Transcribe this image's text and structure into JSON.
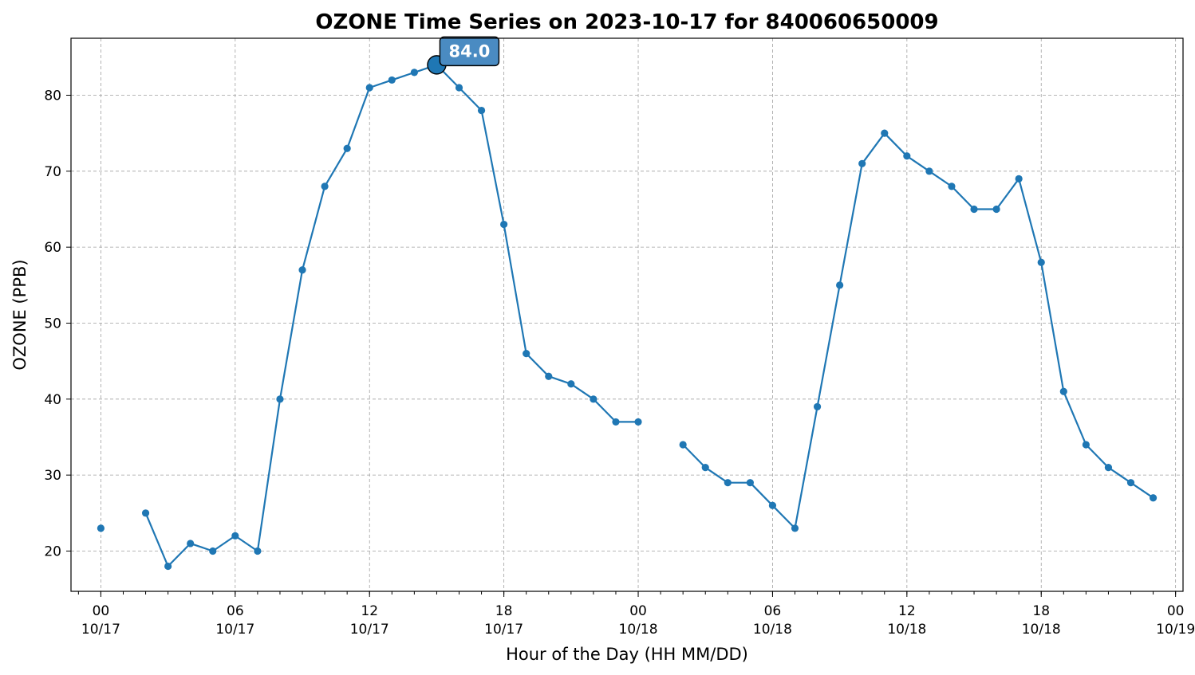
{
  "chart_data": {
    "type": "line",
    "title": "OZONE Time Series on 2023-10-17 for 840060650009",
    "xlabel": "Hour of the Day (HH MM/DD)",
    "ylabel": "OZONE (PPB)",
    "xlim": [
      "2023-10-16 22:40",
      "2023-10-19 00:20"
    ],
    "ylim": [
      14.7,
      87.5
    ],
    "y_ticks": [
      20,
      30,
      40,
      50,
      60,
      70,
      80
    ],
    "x_ticks": [
      {
        "time": "2023-10-17 00:00",
        "hour": "00",
        "date": "10/17"
      },
      {
        "time": "2023-10-17 06:00",
        "hour": "06",
        "date": "10/17"
      },
      {
        "time": "2023-10-17 12:00",
        "hour": "12",
        "date": "10/17"
      },
      {
        "time": "2023-10-17 18:00",
        "hour": "18",
        "date": "10/17"
      },
      {
        "time": "2023-10-18 00:00",
        "hour": "00",
        "date": "10/18"
      },
      {
        "time": "2023-10-18 06:00",
        "hour": "06",
        "date": "10/18"
      },
      {
        "time": "2023-10-18 12:00",
        "hour": "12",
        "date": "10/18"
      },
      {
        "time": "2023-10-18 18:00",
        "hour": "18",
        "date": "10/18"
      },
      {
        "time": "2023-10-19 00:00",
        "hour": "00",
        "date": "10/19"
      }
    ],
    "grid": true,
    "series": [
      {
        "color": "#1f77b4",
        "points": [
          {
            "time": "2023-10-17 00:00",
            "value": 23
          },
          {
            "time": "2023-10-17 01:00",
            "value": null
          },
          {
            "time": "2023-10-17 02:00",
            "value": 25
          },
          {
            "time": "2023-10-17 03:00",
            "value": 18
          },
          {
            "time": "2023-10-17 04:00",
            "value": 21
          },
          {
            "time": "2023-10-17 05:00",
            "value": 20
          },
          {
            "time": "2023-10-17 06:00",
            "value": 22
          },
          {
            "time": "2023-10-17 07:00",
            "value": 20
          },
          {
            "time": "2023-10-17 08:00",
            "value": 40
          },
          {
            "time": "2023-10-17 09:00",
            "value": 57
          },
          {
            "time": "2023-10-17 10:00",
            "value": 68
          },
          {
            "time": "2023-10-17 11:00",
            "value": 73
          },
          {
            "time": "2023-10-17 12:00",
            "value": 81
          },
          {
            "time": "2023-10-17 13:00",
            "value": 82
          },
          {
            "time": "2023-10-17 14:00",
            "value": 83
          },
          {
            "time": "2023-10-17 15:00",
            "value": 84
          },
          {
            "time": "2023-10-17 16:00",
            "value": 81
          },
          {
            "time": "2023-10-17 17:00",
            "value": 78
          },
          {
            "time": "2023-10-17 18:00",
            "value": 63
          },
          {
            "time": "2023-10-17 19:00",
            "value": 46
          },
          {
            "time": "2023-10-17 20:00",
            "value": 43
          },
          {
            "time": "2023-10-17 21:00",
            "value": 42
          },
          {
            "time": "2023-10-17 22:00",
            "value": 40
          },
          {
            "time": "2023-10-17 23:00",
            "value": 37
          },
          {
            "time": "2023-10-18 00:00",
            "value": 37
          },
          {
            "time": "2023-10-18 01:00",
            "value": null
          },
          {
            "time": "2023-10-18 02:00",
            "value": 34
          },
          {
            "time": "2023-10-18 03:00",
            "value": 31
          },
          {
            "time": "2023-10-18 04:00",
            "value": 29
          },
          {
            "time": "2023-10-18 05:00",
            "value": 29
          },
          {
            "time": "2023-10-18 06:00",
            "value": 26
          },
          {
            "time": "2023-10-18 07:00",
            "value": 23
          },
          {
            "time": "2023-10-18 08:00",
            "value": 39
          },
          {
            "time": "2023-10-18 09:00",
            "value": 55
          },
          {
            "time": "2023-10-18 10:00",
            "value": 71
          },
          {
            "time": "2023-10-18 11:00",
            "value": 75
          },
          {
            "time": "2023-10-18 12:00",
            "value": 72
          },
          {
            "time": "2023-10-18 13:00",
            "value": 70
          },
          {
            "time": "2023-10-18 14:00",
            "value": 68
          },
          {
            "time": "2023-10-18 15:00",
            "value": 65
          },
          {
            "time": "2023-10-18 16:00",
            "value": 65
          },
          {
            "time": "2023-10-18 17:00",
            "value": 69
          },
          {
            "time": "2023-10-18 18:00",
            "value": 58
          },
          {
            "time": "2023-10-18 19:00",
            "value": 41
          },
          {
            "time": "2023-10-18 20:00",
            "value": 34
          },
          {
            "time": "2023-10-18 21:00",
            "value": 31
          },
          {
            "time": "2023-10-18 22:00",
            "value": 29
          },
          {
            "time": "2023-10-18 23:00",
            "value": 27
          }
        ]
      }
    ],
    "annotations": [
      {
        "label": "84.0",
        "time": "2023-10-17 15:00",
        "value": 84,
        "box_color": "#4a8bc2"
      }
    ]
  }
}
